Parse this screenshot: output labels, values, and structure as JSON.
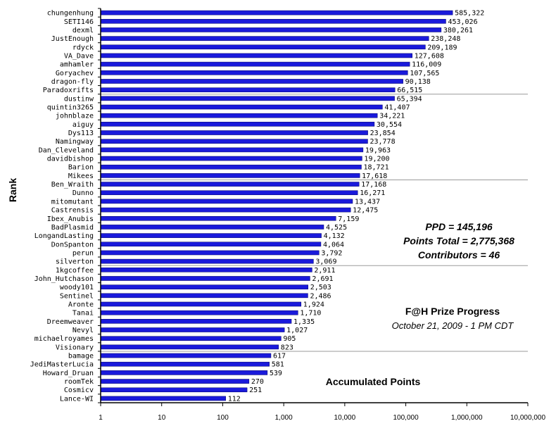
{
  "chart_data": {
    "type": "bar",
    "orientation": "horizontal",
    "x_scale": "log",
    "xlim": [
      1,
      10000000
    ],
    "x_ticks": [
      "1",
      "10",
      "100",
      "1,000",
      "10,000",
      "100,000",
      "1,000,000",
      "10,000,000"
    ],
    "ylabel": "Rank",
    "xlabel": "Accumulated Points",
    "title": "F@H Prize Progress",
    "subtitle": "October 21, 2009 - 1 PM CDT",
    "annotations": [
      "PPD = 145,196",
      "Points Total = 2,775,368",
      "Contributors = 46"
    ],
    "bar_color": "#1a1adb",
    "grid": "horizontal lines every 10 rows",
    "categories": [
      "chungenhung",
      "SETI146",
      "dexml",
      "JustEnough",
      "rdyck",
      "VA_Dave",
      "amhamler",
      "Goryachev",
      "dragon-fly",
      "Paradoxrifts",
      "dustinw",
      "quintin3265",
      "johnblaze",
      "aiguy",
      "Dys113",
      "Namingway",
      "Dan_Cleveland",
      "davidbishop",
      "Barion",
      "Mikees",
      "Ben_Wraith",
      "Dunno",
      "mitomutant",
      "Castrensis",
      "Ibex_Anubis",
      "BadPlasmid",
      "LongandLasting",
      "DonSpanton",
      "perun",
      "silverton",
      "1kgcoffee",
      "John_Hutchason",
      "woody101",
      "Sentinel",
      "Aronte",
      "Tanai",
      "Dreemweaver",
      "Nevyl",
      "michaelroyames",
      "Visionary",
      "bamage",
      "JediMasterLucia",
      "Howard_Druan",
      "roomTek",
      "Cosmicv",
      "Lance-WI"
    ],
    "values": [
      585322,
      453026,
      380261,
      238248,
      209189,
      127608,
      116009,
      107565,
      90138,
      66515,
      65394,
      41407,
      34221,
      30554,
      23854,
      23778,
      19963,
      19200,
      18721,
      17618,
      17168,
      16271,
      13437,
      12475,
      7159,
      4525,
      4132,
      4064,
      3792,
      3069,
      2911,
      2691,
      2503,
      2486,
      1924,
      1710,
      1335,
      1027,
      905,
      823,
      617,
      581,
      539,
      270,
      251,
      112
    ],
    "value_labels": [
      "585,322",
      "453,026",
      "380,261",
      "238,248",
      "209,189",
      "127,608",
      "116,009",
      "107,565",
      "90,138",
      "66,515",
      "65,394",
      "41,407",
      "34,221",
      "30,554",
      "23,854",
      "23,778",
      "19,963",
      "19,200",
      "18,721",
      "17,618",
      "17,168",
      "16,271",
      "13,437",
      "12,475",
      "7,159",
      "4,525",
      "4,132",
      "4,064",
      "3,792",
      "3,069",
      "2,911",
      "2,691",
      "2,503",
      "2,486",
      "1,924",
      "1,710",
      "1,335",
      "1,027",
      "905",
      "823",
      "617",
      "581",
      "539",
      "270",
      "251",
      "112"
    ]
  }
}
